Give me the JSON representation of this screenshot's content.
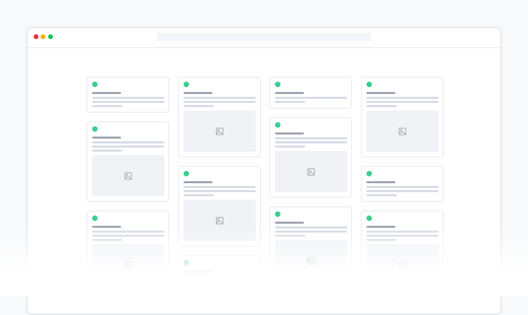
{
  "window": {
    "controls": [
      {
        "name": "close",
        "color": "#f0303a"
      },
      {
        "name": "minimize",
        "color": "#f2b400"
      },
      {
        "name": "maximize",
        "color": "#16c25a"
      }
    ],
    "address_bar": ""
  },
  "colors": {
    "status": "#3bcf8e",
    "title_line": "#9ea3ad",
    "text_line": "#d6dce5",
    "image_bg": "#f0f2f6"
  },
  "columns": [
    [
      {
        "lines": 3,
        "image": false
      },
      {
        "lines": 3,
        "image": true
      },
      {
        "lines": 3,
        "image": true
      }
    ],
    [
      {
        "lines": 3,
        "image": true
      },
      {
        "lines": 3,
        "image": true
      },
      {
        "lines": 3,
        "image": false
      }
    ],
    [
      {
        "lines": 2,
        "image": false
      },
      {
        "lines": 3,
        "image": true
      },
      {
        "lines": 3,
        "image": true
      }
    ],
    [
      {
        "lines": 3,
        "image": true
      },
      {
        "lines": 3,
        "image": false
      },
      {
        "lines": 3,
        "image": true
      }
    ]
  ],
  "image_icon": "image-icon"
}
